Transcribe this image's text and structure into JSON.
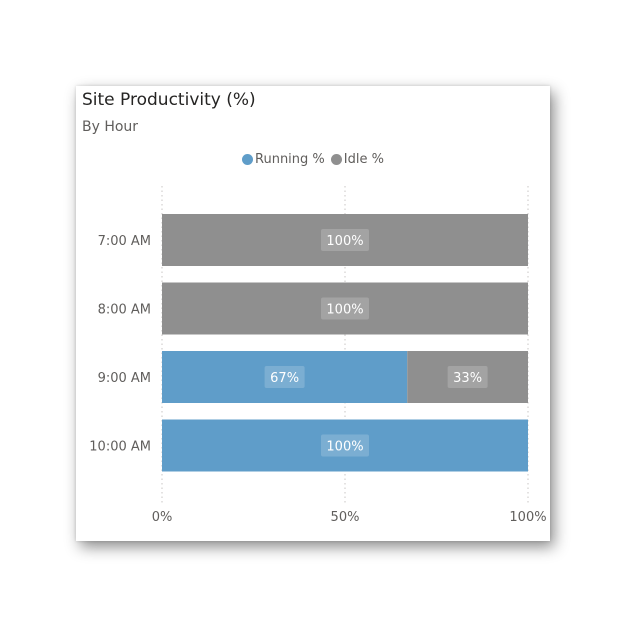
{
  "chart_data": {
    "type": "bar",
    "orientation": "horizontal",
    "stacked": true,
    "title": "Site Productivity (%)",
    "subtitle": "By Hour",
    "categories": [
      "7:00 AM",
      "8:00 AM",
      "9:00 AM",
      "10:00 AM"
    ],
    "series": [
      {
        "name": "Running %",
        "color": "#5f9dc9",
        "values": [
          0,
          0,
          67,
          100
        ],
        "labels": [
          "",
          "",
          "67%",
          "100%"
        ]
      },
      {
        "name": "Idle %",
        "color": "#8f8f8f",
        "values": [
          100,
          100,
          33,
          0
        ],
        "labels": [
          "100%",
          "100%",
          "33%",
          ""
        ]
      }
    ],
    "xlim": [
      0,
      100
    ],
    "xticks": [
      0,
      50,
      100
    ],
    "xtick_labels": [
      "0%",
      "50%",
      "100%"
    ],
    "grid": true,
    "legend_position": "top-center"
  }
}
